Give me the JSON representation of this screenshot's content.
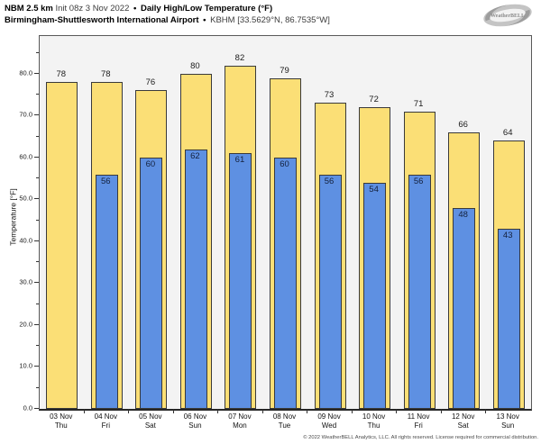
{
  "header": {
    "line1": {
      "model": "NBM 2.5 km",
      "init": "Init 08z 3 Nov 2022",
      "sep": "•",
      "product": "Daily High/Low Temperature (°F)"
    },
    "line2": {
      "station": "Birmingham-Shuttlesworth International Airport",
      "sep": "•",
      "location": "KBHM [33.5629°N, 86.7535°W]"
    }
  },
  "logo": {
    "brand": "WeatherBELL",
    "icon": "hurricane-swirl-icon"
  },
  "chart_data": {
    "type": "bar",
    "title": "Daily High/Low Temperature (°F)",
    "ylabel": "Temperature [°F]",
    "ylim": [
      0,
      89
    ],
    "yticks": [
      0,
      10,
      20,
      30,
      40,
      50,
      60,
      70,
      80
    ],
    "ytick_labels": [
      "0.0",
      "10.0",
      "20.0",
      "30.0",
      "40.0",
      "50.0",
      "60.0",
      "70.0",
      "80.0"
    ],
    "yticks_minor": [
      5,
      15,
      25,
      35,
      45,
      55,
      65,
      75,
      85
    ],
    "grid": false,
    "legend": "none",
    "categories": [
      {
        "date": "03 Nov",
        "day": "Thu"
      },
      {
        "date": "04 Nov",
        "day": "Fri"
      },
      {
        "date": "05 Nov",
        "day": "Sat"
      },
      {
        "date": "06 Nov",
        "day": "Sun"
      },
      {
        "date": "07 Nov",
        "day": "Mon"
      },
      {
        "date": "08 Nov",
        "day": "Tue"
      },
      {
        "date": "09 Nov",
        "day": "Wed"
      },
      {
        "date": "10 Nov",
        "day": "Thu"
      },
      {
        "date": "11 Nov",
        "day": "Fri"
      },
      {
        "date": "12 Nov",
        "day": "Sat"
      },
      {
        "date": "13 Nov",
        "day": "Sun"
      }
    ],
    "series": [
      {
        "name": "High",
        "values": [
          78,
          78,
          76,
          80,
          82,
          79,
          73,
          72,
          71,
          66,
          64
        ]
      },
      {
        "name": "Low",
        "values": [
          null,
          56,
          60,
          62,
          61,
          60,
          56,
          54,
          56,
          48,
          43
        ]
      }
    ]
  },
  "colors": {
    "high_fill": "#FBDF76",
    "low_fill": "#5E90E2",
    "bar_border": "#3a3a3a",
    "plot_bg": "#f3f3f3",
    "frame": "#595959"
  },
  "footer": {
    "copyright": "© 2022 WeatherBELL Analytics, LLC. All rights reserved. License required for commercial distribution."
  }
}
